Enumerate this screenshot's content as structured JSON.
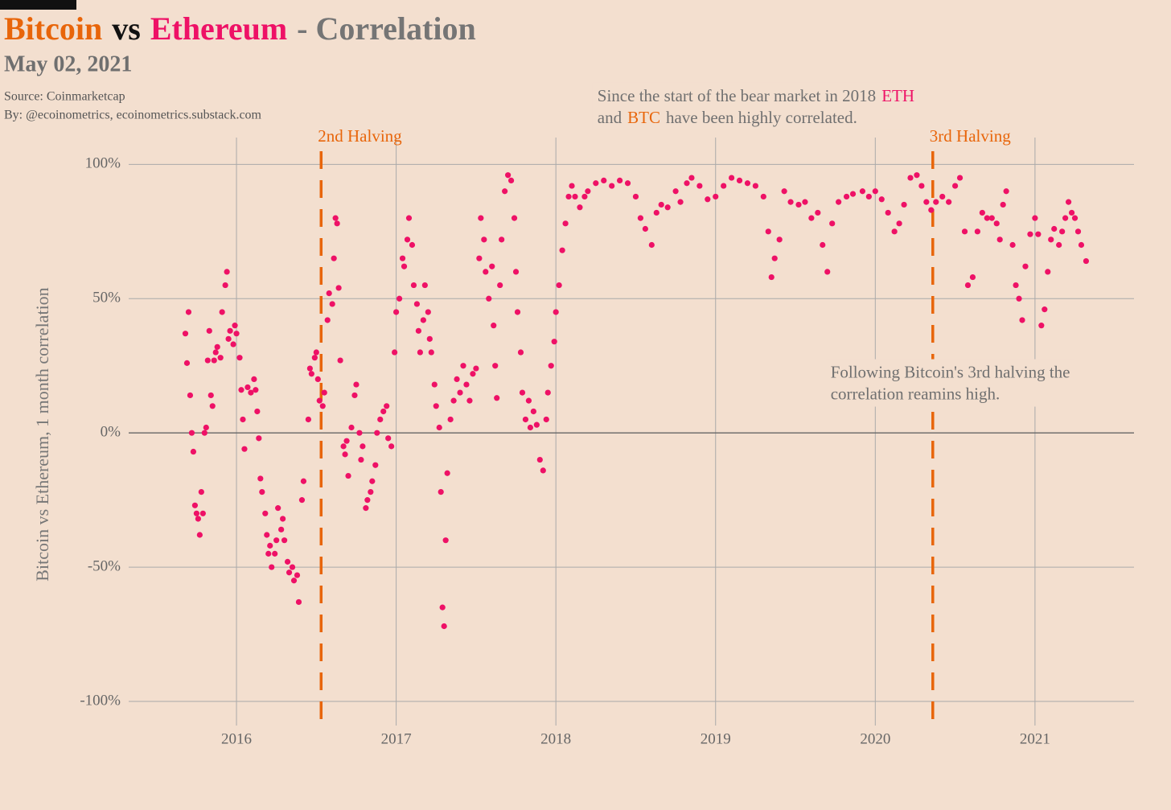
{
  "chart_data": {
    "type": "scatter",
    "title": [
      {
        "text": "Bitcoin",
        "color": "#e8650a"
      },
      {
        "text": "vs",
        "color": "#111111"
      },
      {
        "text": "Ethereum",
        "color": "#ee1166"
      },
      {
        "text": "- Correlation",
        "color": "#757575"
      }
    ],
    "subtitle": "May 02, 2021",
    "source": [
      "Source: Coinmarketcap",
      "By: @ecoinometrics, ecoinometrics.substack.com"
    ],
    "y_label": "Bitcoin vs Ethereum, 1 month correlation",
    "annotations": [
      {
        "x": 2018.26,
        "y": 125,
        "lines": [
          [
            {
              "text": "Since the start of the bear market in 2018",
              "color": "#707070"
            },
            {
              "text": "ETH",
              "color": "#ee1166"
            }
          ],
          [
            {
              "text": "and",
              "color": "#707070"
            },
            {
              "text": "BTC",
              "color": "#e8650a"
            },
            {
              "text": "have been  highly correlated.",
              "color": "#707070"
            }
          ]
        ]
      },
      {
        "x": 2019.72,
        "y": 22,
        "lines": [
          [
            {
              "text": "Following Bitcoin's 3rd halving the",
              "color": "#707070"
            }
          ],
          [
            {
              "text": "correlation reamins high.",
              "color": "#707070"
            }
          ]
        ]
      }
    ],
    "halvings": [
      {
        "x": 2016.53,
        "label": "2nd Halving"
      },
      {
        "x": 2020.36,
        "label": "3rd Halving"
      }
    ],
    "halving_color": "#e8650a",
    "xlim": [
      2015.325,
      2021.62
    ],
    "xticks": [
      2016,
      2017,
      2018,
      2019,
      2020,
      2021
    ],
    "ylim": [
      -109,
      110
    ],
    "yticks": [
      {
        "value": -100,
        "label": "-100%"
      },
      {
        "value": -50,
        "label": "-50%"
      },
      {
        "value": 0,
        "label": "0%"
      },
      {
        "value": 50,
        "label": "50%"
      },
      {
        "value": 100,
        "label": "100%"
      }
    ],
    "grid": true,
    "series": [
      {
        "name": "Bitcoin vs Ethereum",
        "color": "#ee1166",
        "x": [
          2015.68,
          2015.69,
          2015.7,
          2015.71,
          2015.72,
          2015.73,
          2015.74,
          2015.75,
          2015.76,
          2015.77,
          2015.78,
          2015.79,
          2015.8,
          2015.81,
          2015.82,
          2015.83,
          2015.84,
          2015.85,
          2015.86,
          2015.87,
          2015.88,
          2015.9,
          2015.91,
          2015.93,
          2015.94,
          2015.95,
          2015.96,
          2015.98,
          2015.99,
          2016.0,
          2016.02,
          2016.03,
          2016.04,
          2016.05,
          2016.07,
          2016.09,
          2016.11,
          2016.12,
          2016.13,
          2016.14,
          2016.15,
          2016.16,
          2016.18,
          2016.19,
          2016.2,
          2016.21,
          2016.22,
          2016.24,
          2016.25,
          2016.26,
          2016.28,
          2016.29,
          2016.3,
          2016.32,
          2016.33,
          2016.35,
          2016.36,
          2016.38,
          2016.39,
          2016.41,
          2016.42,
          2016.45,
          2016.46,
          2016.47,
          2016.49,
          2016.5,
          2016.51,
          2016.52,
          2016.54,
          2016.55,
          2016.57,
          2016.58,
          2016.6,
          2016.61,
          2016.62,
          2016.63,
          2016.64,
          2016.65,
          2016.67,
          2016.68,
          2016.69,
          2016.7,
          2016.72,
          2016.74,
          2016.75,
          2016.77,
          2016.78,
          2016.79,
          2016.81,
          2016.82,
          2016.84,
          2016.85,
          2016.87,
          2016.88,
          2016.9,
          2016.92,
          2016.94,
          2016.95,
          2016.97,
          2016.99,
          2017.0,
          2017.02,
          2017.04,
          2017.05,
          2017.07,
          2017.08,
          2017.1,
          2017.11,
          2017.13,
          2017.14,
          2017.15,
          2017.17,
          2017.18,
          2017.2,
          2017.21,
          2017.22,
          2017.24,
          2017.25,
          2017.27,
          2017.28,
          2017.29,
          2017.3,
          2017.31,
          2017.32,
          2017.34,
          2017.36,
          2017.38,
          2017.4,
          2017.42,
          2017.44,
          2017.46,
          2017.48,
          2017.5,
          2017.52,
          2017.53,
          2017.55,
          2017.56,
          2017.58,
          2017.6,
          2017.61,
          2017.62,
          2017.63,
          2017.65,
          2017.66,
          2017.68,
          2017.7,
          2017.72,
          2017.74,
          2017.75,
          2017.76,
          2017.78,
          2017.79,
          2017.81,
          2017.83,
          2017.84,
          2017.86,
          2017.88,
          2017.9,
          2017.92,
          2017.94,
          2017.95,
          2017.97,
          2017.99,
          2018.0,
          2018.02,
          2018.04,
          2018.06,
          2018.08,
          2018.1,
          2018.12,
          2018.15,
          2018.18,
          2018.2,
          2018.25,
          2018.3,
          2018.35,
          2018.4,
          2018.45,
          2018.5,
          2018.53,
          2018.56,
          2018.6,
          2018.63,
          2018.66,
          2018.7,
          2018.75,
          2018.78,
          2018.82,
          2018.85,
          2018.9,
          2018.95,
          2019.0,
          2019.05,
          2019.1,
          2019.15,
          2019.2,
          2019.25,
          2019.3,
          2019.33,
          2019.35,
          2019.37,
          2019.4,
          2019.43,
          2019.47,
          2019.52,
          2019.56,
          2019.6,
          2019.64,
          2019.67,
          2019.7,
          2019.73,
          2019.77,
          2019.82,
          2019.86,
          2019.92,
          2019.96,
          2020.0,
          2020.04,
          2020.08,
          2020.12,
          2020.15,
          2020.18,
          2020.22,
          2020.26,
          2020.29,
          2020.32,
          2020.35,
          2020.38,
          2020.42,
          2020.46,
          2020.5,
          2020.53,
          2020.56,
          2020.58,
          2020.61,
          2020.64,
          2020.67,
          2020.7,
          2020.73,
          2020.76,
          2020.78,
          2020.8,
          2020.82,
          2020.86,
          2020.88,
          2020.9,
          2020.92,
          2020.94,
          2020.97,
          2021.0,
          2021.02,
          2021.04,
          2021.06,
          2021.08,
          2021.1,
          2021.12,
          2021.15,
          2021.17,
          2021.19,
          2021.21,
          2021.23,
          2021.25,
          2021.27,
          2021.29,
          2021.32
        ],
        "values": [
          37,
          26,
          45,
          14,
          0,
          -7,
          -27,
          -30,
          -32,
          -38,
          -22,
          -30,
          0,
          2,
          27,
          38,
          14,
          10,
          27,
          30,
          32,
          28,
          45,
          55,
          60,
          35,
          38,
          33,
          40,
          37,
          28,
          16,
          5,
          -6,
          17,
          15,
          20,
          16,
          8,
          -2,
          -17,
          -22,
          -30,
          -38,
          -45,
          -42,
          -50,
          -45,
          -40,
          -28,
          -36,
          -32,
          -40,
          -48,
          -52,
          -50,
          -55,
          -53,
          -63,
          -25,
          -18,
          5,
          24,
          22,
          28,
          30,
          20,
          12,
          10,
          15,
          42,
          52,
          48,
          65,
          80,
          78,
          54,
          27,
          -5,
          -8,
          -3,
          -16,
          2,
          14,
          18,
          0,
          -10,
          -5,
          -28,
          -25,
          -22,
          -18,
          -12,
          0,
          5,
          8,
          10,
          -2,
          -5,
          30,
          45,
          50,
          65,
          62,
          72,
          80,
          70,
          55,
          48,
          38,
          30,
          42,
          55,
          45,
          35,
          30,
          18,
          10,
          2,
          -22,
          -65,
          -72,
          -40,
          -15,
          5,
          12,
          20,
          15,
          25,
          18,
          12,
          22,
          24,
          65,
          80,
          72,
          60,
          50,
          62,
          40,
          25,
          13,
          55,
          72,
          90,
          96,
          94,
          80,
          60,
          45,
          30,
          15,
          5,
          12,
          2,
          8,
          3,
          -10,
          -14,
          5,
          15,
          25,
          34,
          45,
          55,
          68,
          78,
          88,
          92,
          88,
          84,
          88,
          90,
          93,
          94,
          92,
          94,
          93,
          88,
          80,
          76,
          70,
          82,
          85,
          84,
          90,
          86,
          93,
          95,
          92,
          87,
          88,
          92,
          95,
          94,
          93,
          92,
          88,
          75,
          58,
          65,
          72,
          90,
          86,
          85,
          86,
          80,
          82,
          70,
          60,
          78,
          86,
          88,
          89,
          90,
          88,
          90,
          87,
          82,
          75,
          78,
          85,
          95,
          96,
          92,
          86,
          83,
          86,
          88,
          86,
          92,
          95,
          75,
          55,
          58,
          75,
          82,
          80,
          80,
          78,
          72,
          85,
          90,
          70,
          55,
          50,
          42,
          62,
          74,
          80,
          74,
          40,
          46,
          60,
          72,
          76,
          70,
          75,
          80,
          86,
          82,
          80,
          75,
          70,
          64
        ]
      }
    ]
  }
}
